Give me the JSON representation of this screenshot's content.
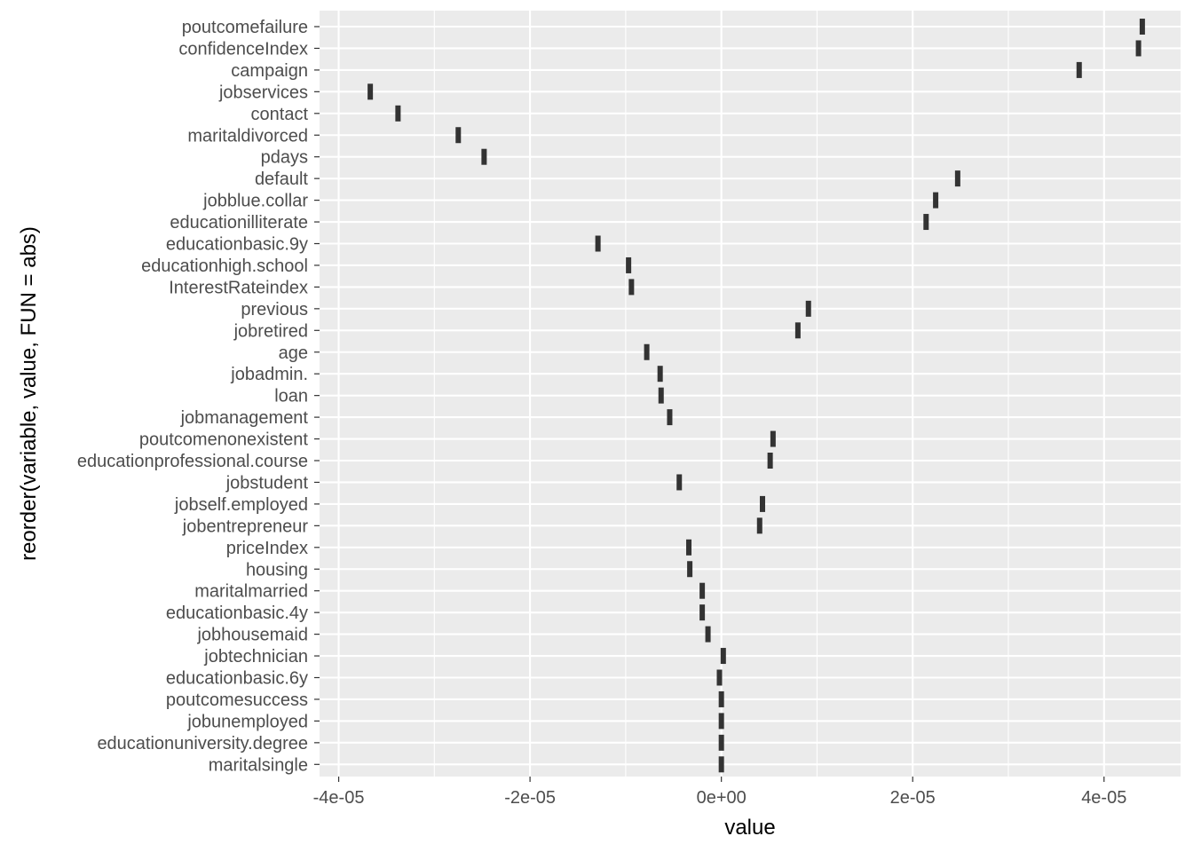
{
  "chart_data": {
    "type": "scatter",
    "marker": "vertical-tick",
    "xlabel": "value",
    "ylabel": "reorder(variable, value, FUN = abs)",
    "xlim": [
      -4.2e-05,
      4.8e-05
    ],
    "x_ticks": [
      -4e-05,
      -2e-05,
      0,
      2e-05,
      4e-05
    ],
    "x_tick_labels": [
      "-4e-05",
      "-2e-05",
      "0e+00",
      "2e-05",
      "4e-05"
    ],
    "grid": true,
    "background": "#ebebeb",
    "grid_color": "#ffffff",
    "marker_color": "#333333",
    "points": [
      {
        "variable": "poutcomefailure",
        "value": 4.4e-05
      },
      {
        "variable": "confidenceIndex",
        "value": 4.36e-05
      },
      {
        "variable": "campaign",
        "value": 3.74e-05
      },
      {
        "variable": "jobservices",
        "value": -3.67e-05
      },
      {
        "variable": "contact",
        "value": -3.38e-05
      },
      {
        "variable": "maritaldivorced",
        "value": -2.75e-05
      },
      {
        "variable": "pdays",
        "value": -2.48e-05
      },
      {
        "variable": "default",
        "value": 2.47e-05
      },
      {
        "variable": "jobblue.collar",
        "value": 2.24e-05
      },
      {
        "variable": "educationilliterate",
        "value": 2.14e-05
      },
      {
        "variable": "educationbasic.9y",
        "value": -1.29e-05
      },
      {
        "variable": "educationhigh.school",
        "value": -9.7e-06
      },
      {
        "variable": "InterestRateindex",
        "value": -9.4e-06
      },
      {
        "variable": "previous",
        "value": 9.1e-06
      },
      {
        "variable": "jobretired",
        "value": 8e-06
      },
      {
        "variable": "age",
        "value": -7.8e-06
      },
      {
        "variable": "jobadmin.",
        "value": -6.4e-06
      },
      {
        "variable": "loan",
        "value": -6.3e-06
      },
      {
        "variable": "jobmanagement",
        "value": -5.4e-06
      },
      {
        "variable": "poutcomenonexistent",
        "value": 5.4e-06
      },
      {
        "variable": "educationprofessional.course",
        "value": 5.1e-06
      },
      {
        "variable": "jobstudent",
        "value": -4.4e-06
      },
      {
        "variable": "jobself.employed",
        "value": 4.3e-06
      },
      {
        "variable": "jobentrepreneur",
        "value": 4e-06
      },
      {
        "variable": "priceIndex",
        "value": -3.4e-06
      },
      {
        "variable": "housing",
        "value": -3.3e-06
      },
      {
        "variable": "maritalmarried",
        "value": -2e-06
      },
      {
        "variable": "educationbasic.4y",
        "value": -2e-06
      },
      {
        "variable": "jobhousemaid",
        "value": -1.4e-06
      },
      {
        "variable": "jobtechnician",
        "value": 2e-07
      },
      {
        "variable": "educationbasic.6y",
        "value": -2e-07
      },
      {
        "variable": "poutcomesuccess",
        "value": 0.0
      },
      {
        "variable": "jobunemployed",
        "value": 0.0
      },
      {
        "variable": "educationuniversity.degree",
        "value": 0.0
      },
      {
        "variable": "maritalsingle",
        "value": 0.0
      }
    ]
  }
}
